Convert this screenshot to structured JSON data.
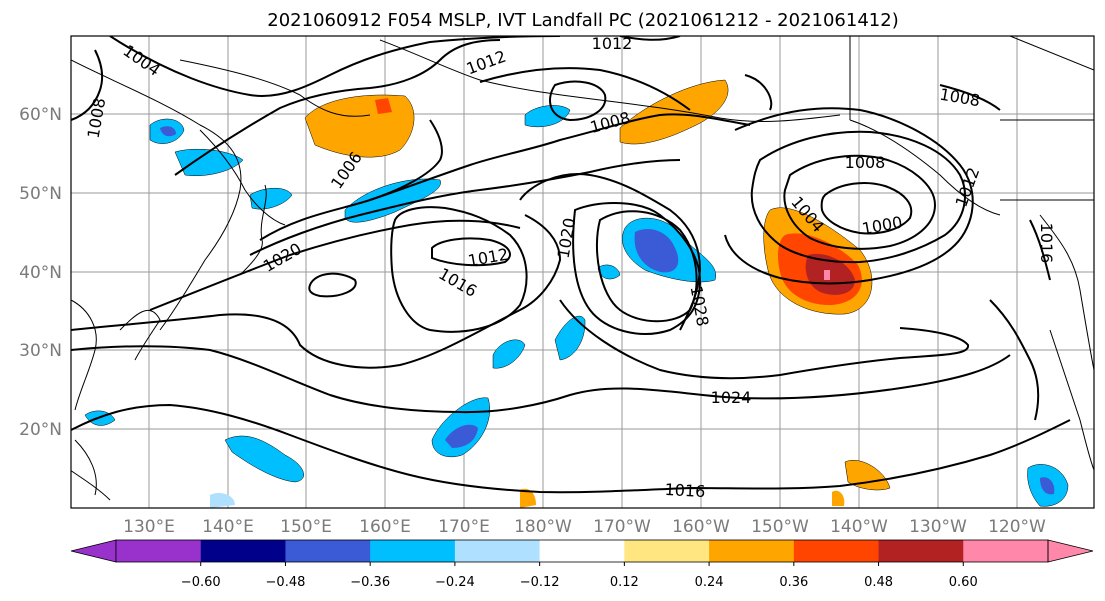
{
  "title": "2021060912 F054 MSLP, IVT Landfall PC (2021061212 - 2021061412)",
  "lat_labels": [
    "20°N",
    "30°N",
    "40°N",
    "50°N",
    "60°N"
  ],
  "lon_labels": [
    "130°E",
    "140°E",
    "150°E",
    "160°E",
    "170°E",
    "180°W",
    "170°W",
    "160°W",
    "150°W",
    "140°W",
    "130°W",
    "120°W"
  ],
  "colorbar": {
    "ticks": [
      "−0.60",
      "−0.48",
      "−0.36",
      "−0.24",
      "−0.12",
      "0.12",
      "0.24",
      "0.36",
      "0.48",
      "0.60"
    ],
    "colors": [
      "#9932cc",
      "#00008b",
      "#3b5bd6",
      "#00bfff",
      "#b0e0ff",
      "#ffffff",
      "#ffe680",
      "#ffa500",
      "#ff4500",
      "#b22222",
      "#ff88aa"
    ]
  },
  "contour_labels": [
    {
      "text": "1004",
      "rot": 35
    },
    {
      "text": "1008",
      "rot": -80
    },
    {
      "text": "1012",
      "rot": 0
    },
    {
      "text": "1012",
      "rot": -20
    },
    {
      "text": "1008",
      "rot": -15
    },
    {
      "text": "1008",
      "rot": 10
    },
    {
      "text": "1006",
      "rot": -55
    },
    {
      "text": "1020",
      "rot": -30
    },
    {
      "text": "1012",
      "rot": -10
    },
    {
      "text": "1016",
      "rot": 30
    },
    {
      "text": "1020",
      "rot": -80
    },
    {
      "text": "1028",
      "rot": 80
    },
    {
      "text": "1008",
      "rot": 0
    },
    {
      "text": "1004",
      "rot": 50
    },
    {
      "text": "1000",
      "rot": -10
    },
    {
      "text": "1012",
      "rot": -70
    },
    {
      "text": "1016",
      "rot": 90
    },
    {
      "text": "1024",
      "rot": 0
    },
    {
      "text": "1016",
      "rot": 3
    }
  ]
}
